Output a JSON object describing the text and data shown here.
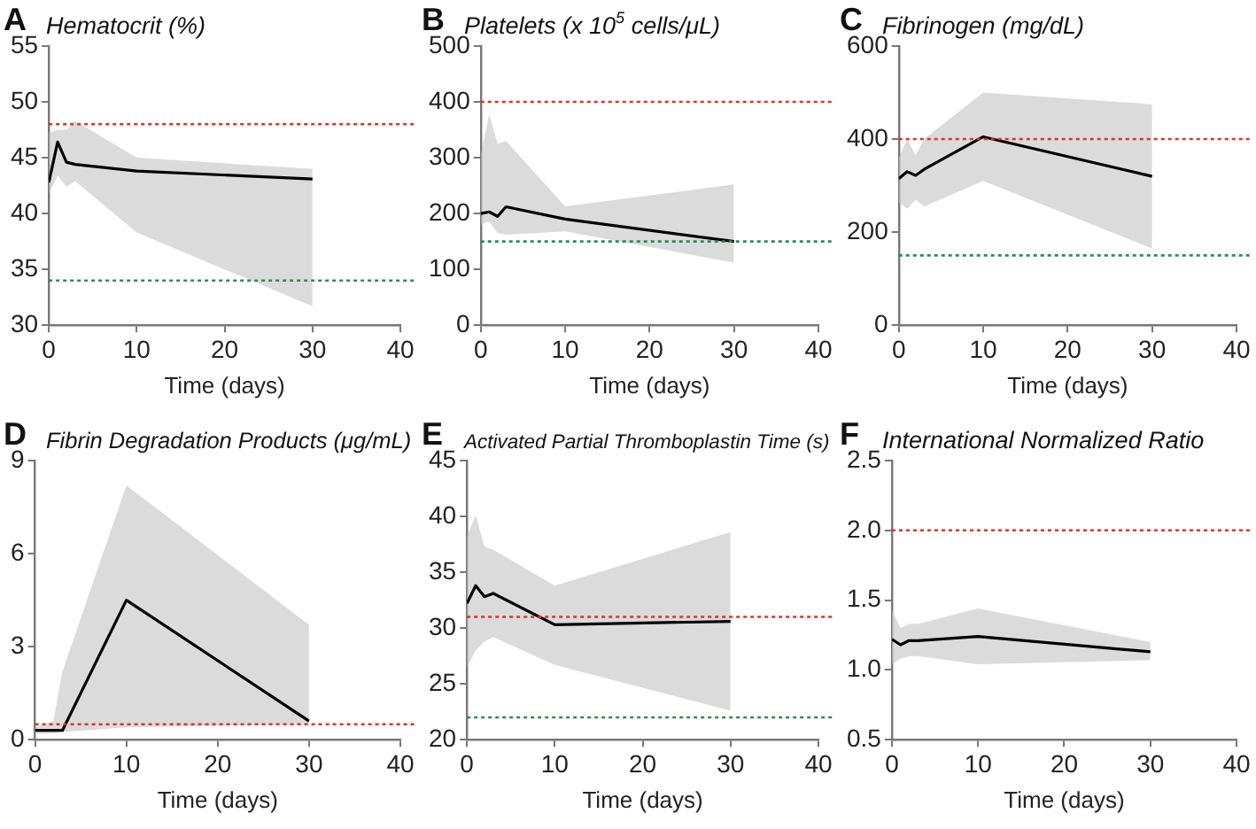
{
  "chart_data": [
    {
      "type": "line",
      "title": "Hematocrit (%)",
      "annotations": [
        "A"
      ],
      "xlabel": "Time (days)",
      "x": [
        0,
        1,
        2,
        3,
        10,
        30
      ],
      "xlim": [
        0,
        40
      ],
      "xticks": [
        0,
        10,
        20,
        30,
        40
      ],
      "ylim": [
        30,
        55
      ],
      "yticks": [
        30,
        35,
        40,
        45,
        50,
        55
      ],
      "grid": false,
      "legend": false,
      "marker": "none",
      "line_style": "solid",
      "series": [
        {
          "color": "#000000",
          "values": [
            42.8,
            46.4,
            44.6,
            44.4,
            43.8,
            43.1
          ],
          "lower": [
            41.8,
            43.4,
            42.4,
            42.9,
            38.3,
            31.7
          ],
          "upper": [
            47.2,
            47.5,
            47.5,
            48.3,
            45.0,
            44.0
          ]
        }
      ],
      "ref_lines": [
        {
          "axis": "y",
          "value": 48,
          "color": "#e03030",
          "line_style": "dotted"
        },
        {
          "axis": "y",
          "value": 34,
          "color": "#2e8b57",
          "line_style": "dotted"
        }
      ]
    },
    {
      "type": "line",
      "title": "Platelets (x 10$^{5}$ cells/μL)",
      "annotations": [
        "B"
      ],
      "xlabel": "Time (days)",
      "x": [
        0,
        1,
        2,
        3,
        10,
        30
      ],
      "xlim": [
        0,
        40
      ],
      "xticks": [
        0,
        10,
        20,
        30,
        40
      ],
      "ylim": [
        0,
        500
      ],
      "yticks": [
        0,
        100,
        200,
        300,
        400,
        500
      ],
      "grid": false,
      "legend": false,
      "marker": "none",
      "line_style": "solid",
      "series": [
        {
          "color": "#000000",
          "values": [
            200,
            203,
            195,
            212,
            190,
            150
          ],
          "lower": [
            180,
            186,
            165,
            162,
            168,
            112
          ],
          "upper": [
            305,
            378,
            325,
            330,
            213,
            252
          ]
        }
      ],
      "ref_lines": [
        {
          "axis": "y",
          "value": 400,
          "color": "#e03030",
          "line_style": "dotted"
        },
        {
          "axis": "y",
          "value": 150,
          "color": "#2e8b57",
          "line_style": "dotted"
        }
      ]
    },
    {
      "type": "line",
      "title": "Fibrinogen (mg/dL)",
      "annotations": [
        "C"
      ],
      "xlabel": "Time (days)",
      "x": [
        0,
        1,
        2,
        3,
        10,
        30
      ],
      "xlim": [
        0,
        40
      ],
      "xticks": [
        0,
        10,
        20,
        30,
        40
      ],
      "ylim": [
        0,
        600
      ],
      "yticks": [
        0,
        200,
        400,
        600
      ],
      "grid": false,
      "legend": false,
      "marker": "none",
      "line_style": "solid",
      "series": [
        {
          "color": "#000000",
          "values": [
            315,
            330,
            322,
            335,
            405,
            320
          ],
          "lower": [
            265,
            250,
            270,
            255,
            310,
            165
          ],
          "upper": [
            360,
            400,
            365,
            400,
            500,
            475
          ]
        }
      ],
      "ref_lines": [
        {
          "axis": "y",
          "value": 400,
          "color": "#e03030",
          "line_style": "dotted"
        },
        {
          "axis": "y",
          "value": 150,
          "color": "#2e8b57",
          "line_style": "dotted"
        }
      ]
    },
    {
      "type": "line",
      "title": "Fibrin Degradation Products (μg/mL)",
      "annotations": [
        "D"
      ],
      "xlabel": "Time (days)",
      "x": [
        0,
        1,
        2,
        3,
        10,
        30
      ],
      "xlim": [
        0,
        40
      ],
      "xticks": [
        0,
        10,
        20,
        30,
        40
      ],
      "ylim": [
        0,
        9
      ],
      "yticks": [
        0,
        3,
        6,
        9
      ],
      "grid": false,
      "legend": false,
      "marker": "none",
      "line_style": "solid",
      "series": [
        {
          "color": "#000000",
          "values": [
            0.3,
            0.3,
            0.3,
            0.3,
            4.5,
            0.6
          ],
          "lower": [
            0.2,
            0.2,
            0.2,
            0.25,
            0.4,
            0.5
          ],
          "upper": [
            0.4,
            0.5,
            0.6,
            2.2,
            8.2,
            3.7
          ]
        }
      ],
      "ref_lines": [
        {
          "axis": "y",
          "value": 0.5,
          "color": "#e03030",
          "line_style": "dotted"
        }
      ]
    },
    {
      "type": "line",
      "title": "Activated Partial Thromboplastin Time (s)",
      "annotations": [
        "E"
      ],
      "xlabel": "Time (days)",
      "x": [
        0,
        1,
        2,
        3,
        10,
        30
      ],
      "xlim": [
        0,
        40
      ],
      "xticks": [
        0,
        10,
        20,
        30,
        40
      ],
      "ylim": [
        20,
        45
      ],
      "yticks": [
        20,
        25,
        30,
        35,
        40,
        45
      ],
      "grid": false,
      "legend": false,
      "marker": "none",
      "line_style": "solid",
      "series": [
        {
          "color": "#000000",
          "values": [
            32.2,
            33.8,
            32.8,
            33.1,
            30.3,
            30.6
          ],
          "lower": [
            26.5,
            28.0,
            28.8,
            29.2,
            26.7,
            22.6
          ],
          "upper": [
            38.2,
            40.1,
            37.3,
            37.0,
            33.8,
            38.6
          ]
        }
      ],
      "ref_lines": [
        {
          "axis": "y",
          "value": 31,
          "color": "#e03030",
          "line_style": "dotted"
        },
        {
          "axis": "y",
          "value": 22,
          "color": "#2e8b57",
          "line_style": "dotted"
        }
      ]
    },
    {
      "type": "line",
      "title": "International Normalized Ratio",
      "annotations": [
        "F"
      ],
      "xlabel": "Time (days)",
      "x": [
        0,
        1,
        2,
        3,
        10,
        30
      ],
      "xlim": [
        0,
        40
      ],
      "xticks": [
        0,
        10,
        20,
        30,
        40
      ],
      "ylim": [
        0.5,
        2.5
      ],
      "yticks": [
        0.5,
        {
          "value": 1,
          "label": "1.0"
        },
        1.5,
        {
          "value": 2,
          "label": "2.0"
        },
        2.5
      ],
      "grid": false,
      "legend": false,
      "marker": "none",
      "line_style": "solid",
      "series": [
        {
          "color": "#000000",
          "values": [
            1.22,
            1.18,
            1.21,
            1.21,
            1.24,
            1.13
          ],
          "lower": [
            1.04,
            1.08,
            1.1,
            1.1,
            1.04,
            1.07
          ],
          "upper": [
            1.43,
            1.3,
            1.33,
            1.33,
            1.44,
            1.2
          ]
        }
      ],
      "ref_lines": [
        {
          "axis": "y",
          "value": 2,
          "color": "#e03030",
          "line_style": "dotted"
        }
      ]
    }
  ]
}
